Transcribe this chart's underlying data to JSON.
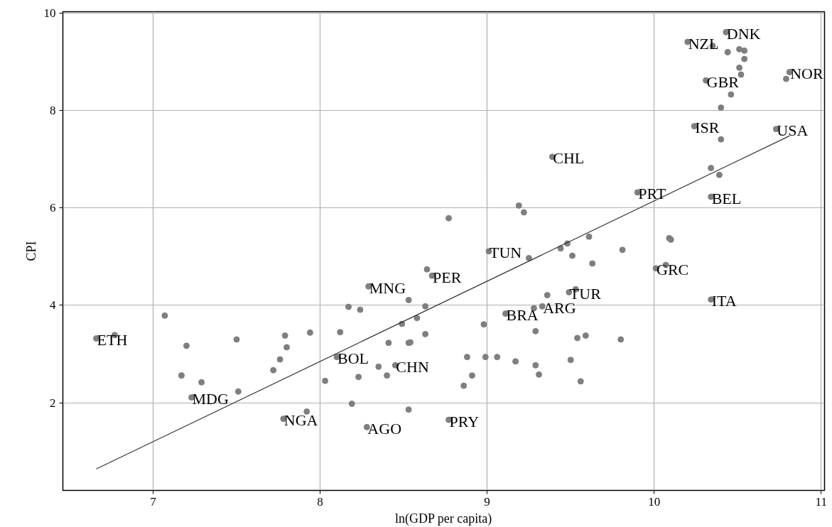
{
  "chart_data": {
    "type": "scatter",
    "xlabel": "ln(GDP per capita)",
    "ylabel": "CPI",
    "xlim": [
      6.46,
      11.02
    ],
    "ylim": [
      0.2,
      10.03
    ],
    "xticks": [
      7,
      8,
      9,
      10,
      11
    ],
    "yticks": [
      2,
      4,
      6,
      8,
      10
    ],
    "grid": true,
    "series": [
      {
        "marker": "circle",
        "color": "#7f7f7f",
        "x": [
          6.66,
          6.77,
          7.07,
          7.2,
          7.17,
          7.29,
          7.23,
          7.5,
          7.51,
          7.79,
          7.8,
          7.76,
          7.72,
          7.94,
          7.78,
          7.92,
          8.03,
          8.12,
          8.17,
          8.24,
          8.1,
          8.19,
          8.23,
          8.29,
          8.35,
          8.41,
          8.4,
          8.45,
          8.28,
          8.53,
          8.49,
          8.53,
          8.53,
          8.54,
          8.58,
          8.63,
          8.63,
          8.64,
          8.67,
          8.77,
          8.77,
          8.86,
          8.91,
          8.88,
          8.98,
          8.99,
          9.01,
          9.06,
          9.17,
          9.25,
          9.19,
          9.22,
          9.11,
          9.28,
          9.33,
          9.36,
          9.29,
          9.29,
          9.31,
          9.49,
          9.53,
          9.44,
          9.48,
          9.51,
          9.61,
          9.63,
          9.81,
          9.54,
          9.59,
          9.8,
          9.5,
          9.56,
          10.01,
          10.07,
          10.09,
          10.1,
          10.34,
          9.39,
          9.9,
          10.34,
          10.34,
          10.39,
          10.4,
          10.24,
          10.73,
          10.4,
          10.46,
          10.31,
          10.51,
          10.52,
          10.79,
          10.81,
          10.2,
          10.35,
          10.43,
          10.44,
          10.51,
          10.54,
          10.54
        ],
        "values": [
          3.32,
          3.39,
          3.79,
          3.17,
          2.56,
          2.42,
          2.11,
          3.3,
          2.23,
          3.38,
          3.14,
          2.89,
          2.67,
          3.44,
          1.67,
          1.82,
          2.45,
          3.45,
          3.97,
          3.91,
          2.94,
          1.98,
          2.53,
          4.39,
          2.74,
          3.23,
          2.56,
          2.77,
          1.5,
          1.86,
          3.62,
          4.11,
          3.23,
          3.24,
          3.74,
          3.98,
          3.41,
          4.74,
          4.61,
          5.79,
          1.65,
          2.35,
          2.56,
          2.94,
          3.61,
          2.94,
          5.11,
          2.94,
          2.85,
          4.97,
          6.05,
          5.91,
          3.83,
          3.94,
          3.98,
          4.21,
          3.47,
          2.77,
          2.58,
          4.27,
          4.33,
          5.17,
          5.27,
          5.02,
          5.41,
          4.86,
          5.14,
          3.33,
          3.38,
          3.3,
          2.88,
          2.44,
          4.76,
          4.83,
          5.38,
          5.35,
          4.12,
          7.05,
          6.32,
          6.23,
          6.82,
          6.68,
          7.41,
          7.68,
          7.62,
          8.06,
          8.33,
          8.62,
          8.88,
          8.74,
          8.65,
          8.79,
          9.41,
          9.33,
          9.61,
          9.2,
          9.26,
          9.23,
          9.06
        ]
      },
      {
        "type": "line",
        "color": "#333333",
        "x": [
          6.66,
          10.81
        ],
        "values": [
          0.64,
          7.48
        ]
      }
    ],
    "annotations": [
      {
        "text": "ETH",
        "x": 6.66,
        "y": 3.32
      },
      {
        "text": "MDG",
        "x": 7.23,
        "y": 2.11
      },
      {
        "text": "NGA",
        "x": 7.78,
        "y": 1.67
      },
      {
        "text": "BOL",
        "x": 8.1,
        "y": 2.94
      },
      {
        "text": "MNG",
        "x": 8.29,
        "y": 4.39
      },
      {
        "text": "CHN",
        "x": 8.45,
        "y": 2.77
      },
      {
        "text": "AGO",
        "x": 8.28,
        "y": 1.5
      },
      {
        "text": "PER",
        "x": 8.67,
        "y": 4.61
      },
      {
        "text": "PRY",
        "x": 8.77,
        "y": 1.65
      },
      {
        "text": "TUN",
        "x": 9.01,
        "y": 5.11
      },
      {
        "text": "BRA",
        "x": 9.11,
        "y": 3.83
      },
      {
        "text": "ARG",
        "x": 9.33,
        "y": 3.98
      },
      {
        "text": "TUR",
        "x": 9.49,
        "y": 4.27
      },
      {
        "text": "CHL",
        "x": 9.39,
        "y": 7.05
      },
      {
        "text": "PRT",
        "x": 9.9,
        "y": 6.32
      },
      {
        "text": "GRC",
        "x": 10.01,
        "y": 4.76
      },
      {
        "text": "ITA",
        "x": 10.34,
        "y": 4.12
      },
      {
        "text": "BEL",
        "x": 10.34,
        "y": 6.23
      },
      {
        "text": "ISR",
        "x": 10.24,
        "y": 7.68
      },
      {
        "text": "USA",
        "x": 10.73,
        "y": 7.62
      },
      {
        "text": "GBR",
        "x": 10.31,
        "y": 8.62
      },
      {
        "text": "NOR",
        "x": 10.81,
        "y": 8.79
      },
      {
        "text": "NZL",
        "x": 10.2,
        "y": 9.41
      },
      {
        "text": "DNK",
        "x": 10.43,
        "y": 9.61
      }
    ]
  }
}
